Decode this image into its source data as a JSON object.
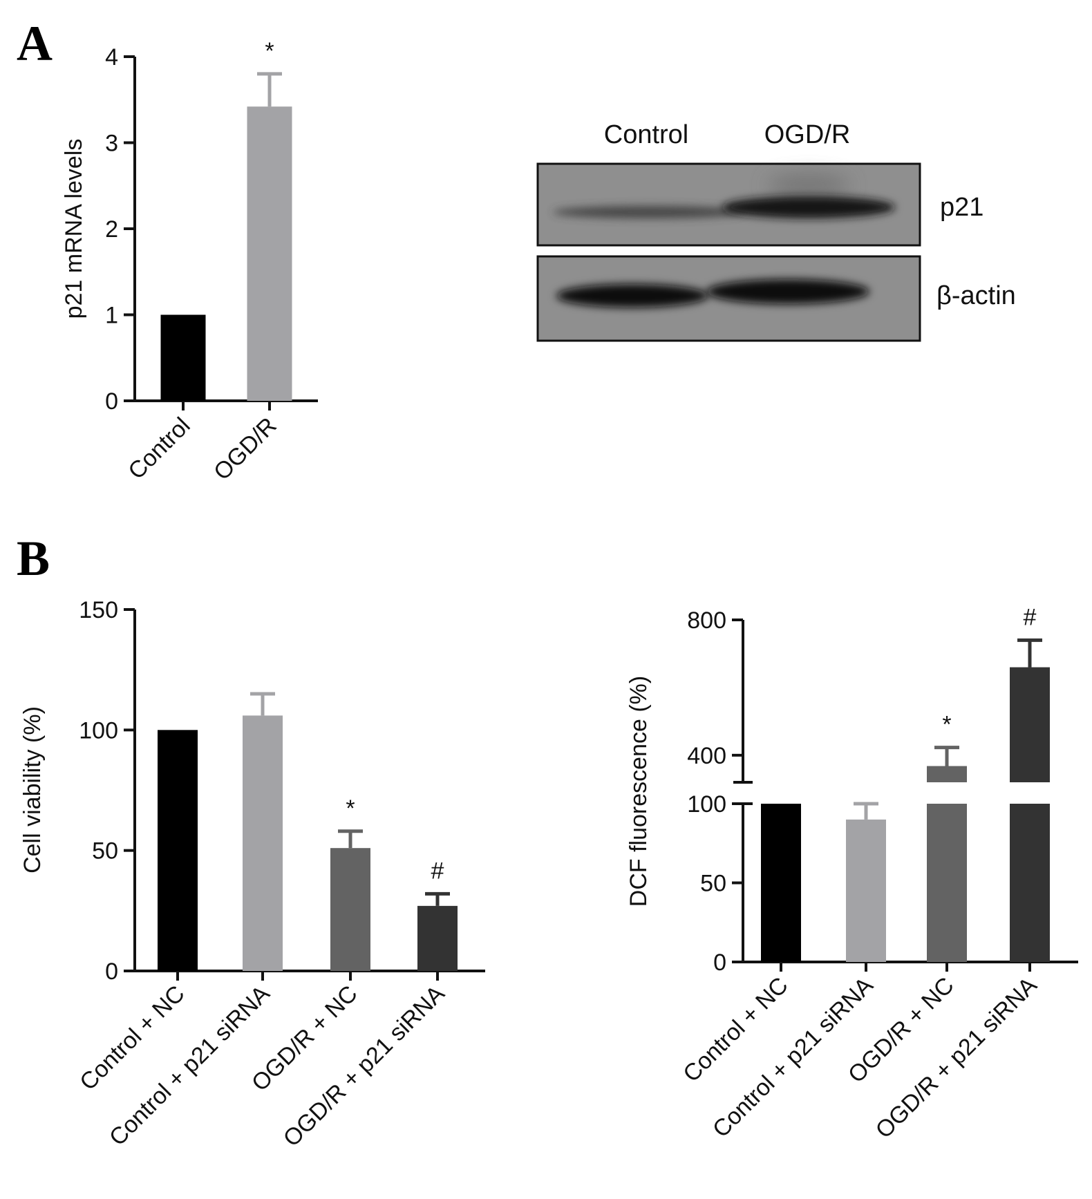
{
  "panels": {
    "a": "A",
    "b": "B"
  },
  "colors": {
    "black": "#000000",
    "lightgray": "#a3a3a6",
    "midgray": "#636363",
    "darkgray": "#333333"
  },
  "chart_data": [
    {
      "id": "a_mrna",
      "type": "bar",
      "ylabel": "p21 mRNA levels",
      "ylim": [
        0,
        4
      ],
      "yticks": [
        0,
        1,
        2,
        3,
        4
      ],
      "categories": [
        "Control",
        "OGD/R"
      ],
      "values": [
        1.0,
        3.42
      ],
      "errors": [
        0,
        0.38
      ],
      "marks": [
        "",
        "*"
      ],
      "colors": [
        "#000000",
        "#a3a3a6"
      ]
    },
    {
      "id": "b_viability",
      "type": "bar",
      "ylabel": "Cell viability (%)",
      "ylim": [
        0,
        150
      ],
      "yticks": [
        0,
        50,
        100,
        150
      ],
      "categories": [
        "Control + NC",
        "Control + p21 siRNA",
        "OGD/R + NC",
        "OGD/R + p21 siRNA"
      ],
      "values": [
        100,
        106,
        51,
        27
      ],
      "errors": [
        0,
        9,
        7,
        5
      ],
      "marks": [
        "",
        "",
        "*",
        "#"
      ],
      "colors": [
        "#000000",
        "#a3a3a6",
        "#636363",
        "#333333"
      ]
    },
    {
      "id": "b_dcf",
      "type": "bar",
      "ylabel": "DCF fluorescence (%)",
      "axis_break": [
        100,
        320
      ],
      "yticks_lower": [
        0,
        50,
        100
      ],
      "yticks_upper": [
        400,
        800
      ],
      "ylim": [
        0,
        800
      ],
      "categories": [
        "Control + NC",
        "Control + p21 siRNA",
        "OGD/R + NC",
        "OGD/R + p21 siRNA"
      ],
      "values": [
        100,
        90,
        368,
        660
      ],
      "errors": [
        0,
        10,
        55,
        80
      ],
      "marks": [
        "",
        "",
        "*",
        "#"
      ],
      "colors": [
        "#000000",
        "#a3a3a6",
        "#636363",
        "#333333"
      ]
    }
  ],
  "blot": {
    "lanes": [
      "Control",
      "OGD/R"
    ],
    "rows": [
      "p21",
      "β-actin"
    ]
  }
}
